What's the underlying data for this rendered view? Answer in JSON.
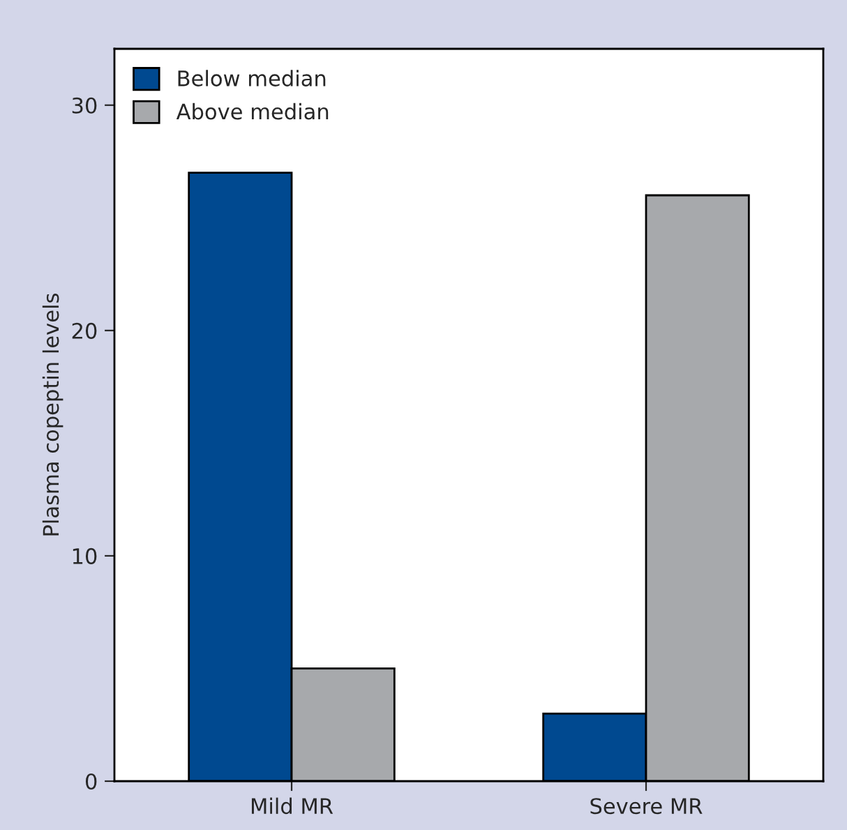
{
  "chart_data": {
    "type": "bar",
    "ylabel": "Plasma copeptin levels",
    "categories": [
      "Mild MR",
      "Severe MR"
    ],
    "series": [
      {
        "name": "Below median",
        "color": "#004990",
        "values": [
          27,
          3
        ]
      },
      {
        "name": "Above median",
        "color": "#a7a9ac",
        "values": [
          5,
          26
        ]
      }
    ],
    "ylim": [
      0,
      32.5
    ],
    "yticks": [
      0,
      10,
      20,
      30
    ],
    "legend": "top left",
    "grid": false
  }
}
